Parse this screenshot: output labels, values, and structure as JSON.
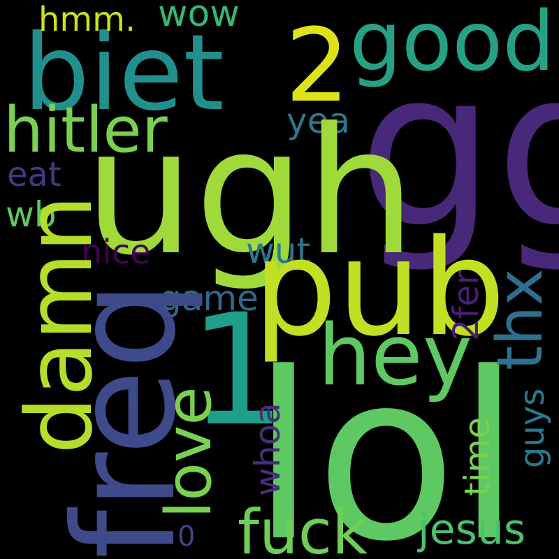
{
  "words": {
    "gg": {
      "text": "gg",
      "color": "#482878"
    },
    "lol": {
      "text": "lol",
      "color": "#5ec962"
    },
    "ugh": {
      "text": "ugh",
      "color": "#9fda3a"
    },
    "freq": {
      "text": "freq",
      "color": "#3e4a89"
    },
    "pub": {
      "text": "pub",
      "color": "#c2df23"
    },
    "biet": {
      "text": "biet",
      "color": "#21908d"
    },
    "two": {
      "text": "2",
      "color": "#dde318"
    },
    "one": {
      "text": "1",
      "color": "#1f9e89"
    },
    "damn": {
      "text": "damn",
      "color": "#b5de2b"
    },
    "good": {
      "text": "good",
      "color": "#26a185"
    },
    "hey": {
      "text": "hey",
      "color": "#5ec962"
    },
    "hitler": {
      "text": "hitler",
      "color": "#7ad151"
    },
    "love": {
      "text": "love",
      "color": "#7ad151"
    },
    "fuck": {
      "text": "fuck",
      "color": "#6ece58"
    },
    "thx": {
      "text": "thx",
      "color": "#2c718e"
    },
    "jesus": {
      "text": "jesus",
      "color": "#4ac16d"
    },
    "hmm": {
      "text": "hmm.",
      "color": "#cde11d"
    },
    "wow": {
      "text": "wow",
      "color": "#35b779"
    },
    "yea": {
      "text": "yea",
      "color": "#2a788e"
    },
    "eat": {
      "text": "eat",
      "color": "#443983"
    },
    "wb": {
      "text": "wb",
      "color": "#5ec962"
    },
    "nice": {
      "text": "nice",
      "color": "#440154"
    },
    "wut": {
      "text": "wut",
      "color": "#2a788e"
    },
    "game": {
      "text": "game",
      "color": "#31688e"
    },
    "twofer": {
      "text": "2fer",
      "color": "#481f70"
    },
    "whoa": {
      "text": "whoa",
      "color": "#472d7b"
    },
    "time": {
      "text": "time",
      "color": "#7ad151"
    },
    "guys": {
      "text": "guys",
      "color": "#2a788e"
    },
    "zero": {
      "text": "0",
      "color": "#414487"
    }
  }
}
